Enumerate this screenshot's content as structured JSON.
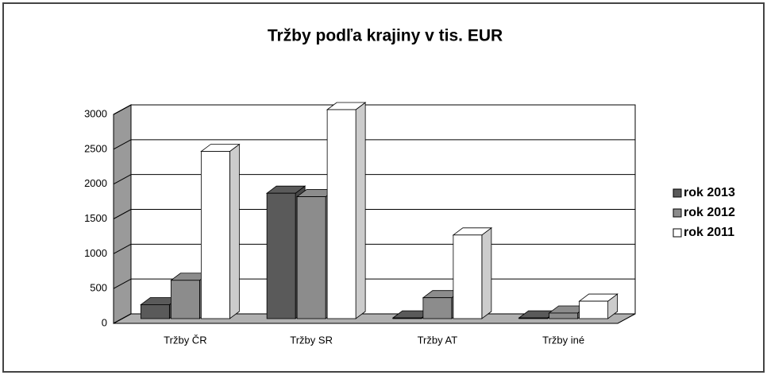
{
  "chart_data": {
    "type": "bar3d",
    "title": "Tržby podľa krajiny v tis. EUR",
    "categories": [
      "Tržby ČR",
      "Tržby SR",
      "Tržby AT",
      "Tržby iné"
    ],
    "series": [
      {
        "name": "rok 2013",
        "color": "#5a5a5a",
        "values": [
          200,
          1800,
          10,
          10
        ]
      },
      {
        "name": "rok 2012",
        "color": "#8c8c8c",
        "values": [
          550,
          1750,
          300,
          80
        ]
      },
      {
        "name": "rok 2011",
        "color": "#ffffff",
        "values": [
          2400,
          3000,
          1200,
          250
        ]
      }
    ],
    "ylim": [
      0,
      3000
    ],
    "yticks": [
      0,
      500,
      1000,
      1500,
      2000,
      2500,
      3000
    ],
    "grid": true,
    "legend": "right"
  }
}
